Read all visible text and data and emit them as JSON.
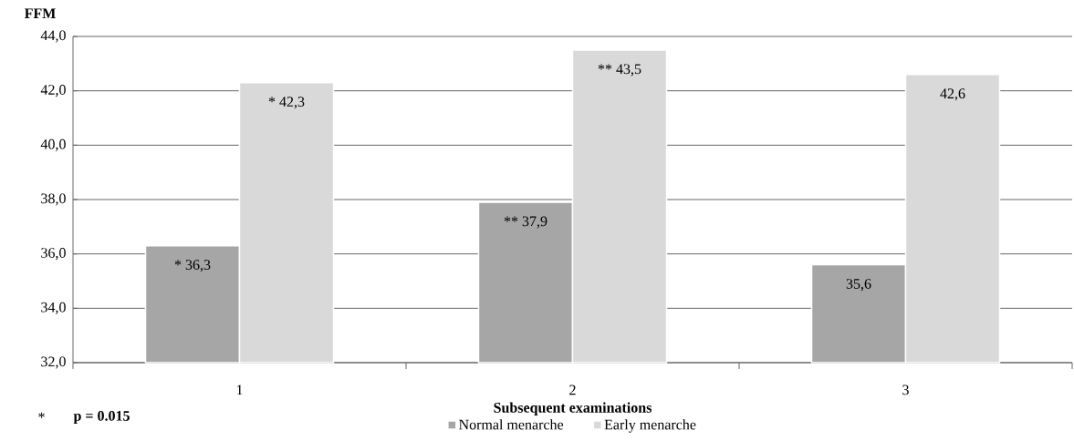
{
  "chart_data": {
    "type": "bar",
    "ylabel": "FFM",
    "xlabel": "Subsequent examinations",
    "categories": [
      "1",
      "2",
      "3"
    ],
    "series": [
      {
        "name": "Normal menarche",
        "color": "#a6a6a6",
        "values": [
          36.3,
          37.9,
          35.6
        ],
        "value_labels": [
          "* 36,3",
          "** 37,9",
          "35,6"
        ]
      },
      {
        "name": "Early menarche",
        "color": "#d9d9d9",
        "values": [
          42.3,
          43.5,
          42.6
        ],
        "value_labels": [
          "* 42,3",
          "** 43,5",
          "42,6"
        ]
      }
    ],
    "ylim": [
      32,
      44
    ],
    "yticks": [
      {
        "value": 32,
        "label": "32,0"
      },
      {
        "value": 34,
        "label": "34,0"
      },
      {
        "value": 36,
        "label": "36,0"
      },
      {
        "value": 38,
        "label": "38,0"
      },
      {
        "value": 40,
        "label": "40,0"
      },
      {
        "value": 42,
        "label": "42,0"
      },
      {
        "value": 44,
        "label": "44,0"
      }
    ],
    "grid": "y",
    "legend": "bottom",
    "annotations": [
      "*",
      "p = 0.015"
    ]
  }
}
